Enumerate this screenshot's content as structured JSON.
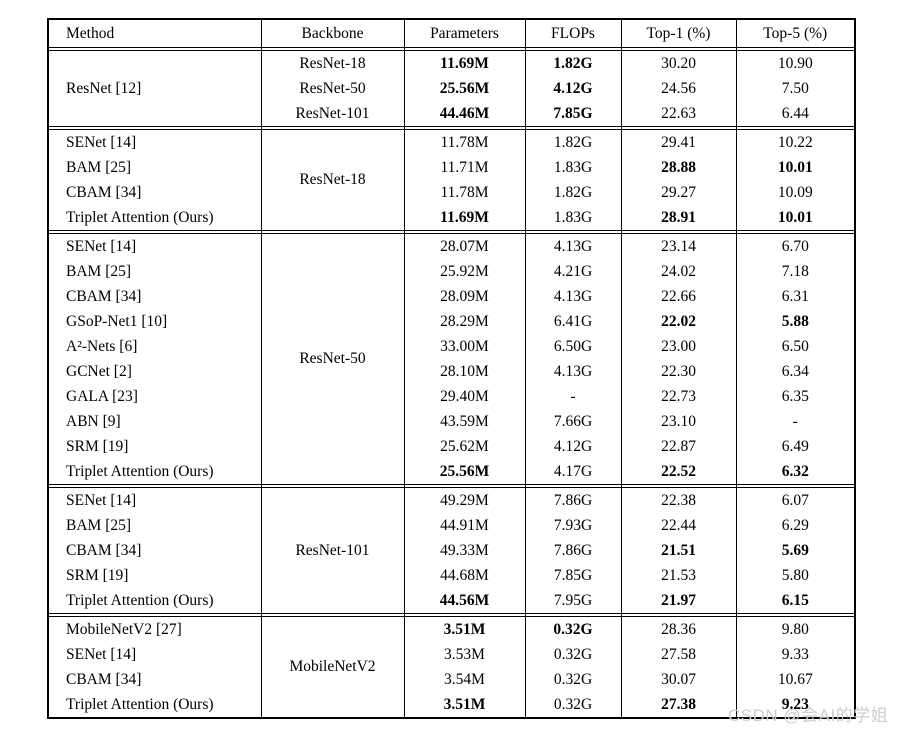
{
  "table": {
    "headers": [
      "Method",
      "Backbone",
      "Parameters",
      "FLOPs",
      "Top-1 (%)",
      "Top-5 (%)"
    ],
    "column_keys": [
      "method",
      "backbone",
      "parameters",
      "flops",
      "top1",
      "top5"
    ],
    "sections": [
      {
        "group": {
          "column": "method",
          "label": "ResNet [12]"
        },
        "rows": [
          {
            "cells": [
              {
                "t": "ResNet-18"
              },
              {
                "t": "11.69M",
                "b": true
              },
              {
                "t": "1.82G",
                "b": true
              },
              {
                "t": "30.20"
              },
              {
                "t": "10.90"
              }
            ]
          },
          {
            "cells": [
              {
                "t": "ResNet-50"
              },
              {
                "t": "25.56M",
                "b": true
              },
              {
                "t": "4.12G",
                "b": true
              },
              {
                "t": "24.56"
              },
              {
                "t": "7.50"
              }
            ]
          },
          {
            "cells": [
              {
                "t": "ResNet-101"
              },
              {
                "t": "44.46M",
                "b": true
              },
              {
                "t": "7.85G",
                "b": true
              },
              {
                "t": "22.63"
              },
              {
                "t": "6.44"
              }
            ]
          }
        ]
      },
      {
        "group": {
          "column": "backbone",
          "label": "ResNet-18"
        },
        "rows": [
          {
            "cells": [
              {
                "t": "SENet [14]"
              },
              {
                "t": "11.78M"
              },
              {
                "t": "1.82G"
              },
              {
                "t": "29.41"
              },
              {
                "t": "10.22"
              }
            ]
          },
          {
            "cells": [
              {
                "t": "BAM [25]"
              },
              {
                "t": "11.71M"
              },
              {
                "t": "1.83G"
              },
              {
                "t": "28.88",
                "b": true
              },
              {
                "t": "10.01",
                "b": true
              }
            ]
          },
          {
            "cells": [
              {
                "t": "CBAM [34]"
              },
              {
                "t": "11.78M"
              },
              {
                "t": "1.82G"
              },
              {
                "t": "29.27"
              },
              {
                "t": "10.09"
              }
            ]
          },
          {
            "cells": [
              {
                "t": "Triplet Attention (Ours)"
              },
              {
                "t": "11.69M",
                "b": true
              },
              {
                "t": "1.83G"
              },
              {
                "t": "28.91",
                "b": true
              },
              {
                "t": "10.01",
                "b": true
              }
            ]
          }
        ]
      },
      {
        "group": {
          "column": "backbone",
          "label": "ResNet-50"
        },
        "rows": [
          {
            "cells": [
              {
                "t": "SENet [14]"
              },
              {
                "t": "28.07M"
              },
              {
                "t": "4.13G"
              },
              {
                "t": "23.14"
              },
              {
                "t": "6.70"
              }
            ]
          },
          {
            "cells": [
              {
                "t": "BAM [25]"
              },
              {
                "t": "25.92M"
              },
              {
                "t": "4.21G"
              },
              {
                "t": "24.02"
              },
              {
                "t": "7.18"
              }
            ]
          },
          {
            "cells": [
              {
                "t": "CBAM [34]"
              },
              {
                "t": "28.09M"
              },
              {
                "t": "4.13G"
              },
              {
                "t": "22.66"
              },
              {
                "t": "6.31"
              }
            ]
          },
          {
            "cells": [
              {
                "t": "GSoP-Net1 [10]"
              },
              {
                "t": "28.29M"
              },
              {
                "t": "6.41G"
              },
              {
                "t": "22.02",
                "b": true
              },
              {
                "t": "5.88",
                "b": true
              }
            ]
          },
          {
            "cells": [
              {
                "t": "A²-Nets [6]"
              },
              {
                "t": "33.00M"
              },
              {
                "t": "6.50G"
              },
              {
                "t": "23.00"
              },
              {
                "t": "6.50"
              }
            ]
          },
          {
            "cells": [
              {
                "t": "GCNet [2]"
              },
              {
                "t": "28.10M"
              },
              {
                "t": "4.13G"
              },
              {
                "t": "22.30"
              },
              {
                "t": "6.34"
              }
            ]
          },
          {
            "cells": [
              {
                "t": "GALA [23]"
              },
              {
                "t": "29.40M"
              },
              {
                "t": "-"
              },
              {
                "t": "22.73"
              },
              {
                "t": "6.35"
              }
            ]
          },
          {
            "cells": [
              {
                "t": "ABN [9]"
              },
              {
                "t": "43.59M"
              },
              {
                "t": "7.66G"
              },
              {
                "t": "23.10"
              },
              {
                "t": "-"
              }
            ]
          },
          {
            "cells": [
              {
                "t": "SRM [19]"
              },
              {
                "t": "25.62M"
              },
              {
                "t": "4.12G"
              },
              {
                "t": "22.87"
              },
              {
                "t": "6.49"
              }
            ]
          },
          {
            "cells": [
              {
                "t": "Triplet Attention (Ours)"
              },
              {
                "t": "25.56M",
                "b": true
              },
              {
                "t": "4.17G"
              },
              {
                "t": "22.52",
                "b": true
              },
              {
                "t": "6.32",
                "b": true
              }
            ]
          }
        ]
      },
      {
        "group": {
          "column": "backbone",
          "label": "ResNet-101"
        },
        "rows": [
          {
            "cells": [
              {
                "t": "SENet [14]"
              },
              {
                "t": "49.29M"
              },
              {
                "t": "7.86G"
              },
              {
                "t": "22.38"
              },
              {
                "t": "6.07"
              }
            ]
          },
          {
            "cells": [
              {
                "t": "BAM [25]"
              },
              {
                "t": "44.91M"
              },
              {
                "t": "7.93G"
              },
              {
                "t": "22.44"
              },
              {
                "t": "6.29"
              }
            ]
          },
          {
            "cells": [
              {
                "t": "CBAM [34]"
              },
              {
                "t": "49.33M"
              },
              {
                "t": "7.86G"
              },
              {
                "t": "21.51",
                "b": true
              },
              {
                "t": "5.69",
                "b": true
              }
            ]
          },
          {
            "cells": [
              {
                "t": "SRM [19]"
              },
              {
                "t": "44.68M"
              },
              {
                "t": "7.85G"
              },
              {
                "t": "21.53"
              },
              {
                "t": "5.80"
              }
            ]
          },
          {
            "cells": [
              {
                "t": "Triplet Attention (Ours)"
              },
              {
                "t": "44.56M",
                "b": true
              },
              {
                "t": "7.95G"
              },
              {
                "t": "21.97",
                "b": true
              },
              {
                "t": "6.15",
                "b": true
              }
            ]
          }
        ]
      },
      {
        "group": {
          "column": "backbone",
          "label": "MobileNetV2"
        },
        "rows": [
          {
            "cells": [
              {
                "t": "MobileNetV2 [27]"
              },
              {
                "t": "3.51M",
                "b": true
              },
              {
                "t": "0.32G",
                "b": true
              },
              {
                "t": "28.36"
              },
              {
                "t": "9.80"
              }
            ]
          },
          {
            "cells": [
              {
                "t": "SENet [14]"
              },
              {
                "t": "3.53M"
              },
              {
                "t": "0.32G"
              },
              {
                "t": "27.58"
              },
              {
                "t": "9.33"
              }
            ]
          },
          {
            "cells": [
              {
                "t": "CBAM [34]"
              },
              {
                "t": "3.54M"
              },
              {
                "t": "0.32G"
              },
              {
                "t": "30.07"
              },
              {
                "t": "10.67"
              }
            ]
          },
          {
            "cells": [
              {
                "t": "Triplet Attention (Ours)"
              },
              {
                "t": "3.51M",
                "b": true
              },
              {
                "t": "0.32G"
              },
              {
                "t": "27.38",
                "b": true
              },
              {
                "t": "9.23",
                "b": true
              }
            ]
          }
        ]
      }
    ]
  },
  "watermark": {
    "text": "CSDN @会AI的学姐",
    "color": "#d3cccc"
  }
}
